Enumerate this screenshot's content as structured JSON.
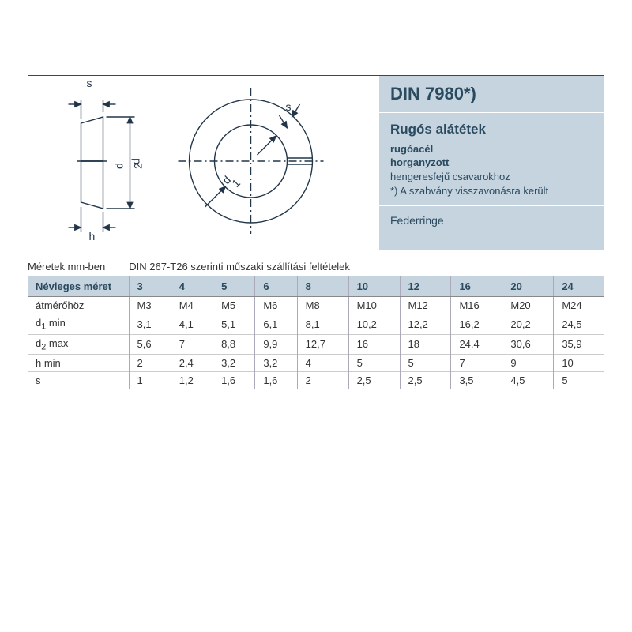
{
  "info": {
    "title": "DIN 7980*)",
    "subtitle": "Rugós alátétek",
    "material1": "rugóacél",
    "material2": "horganyzott",
    "note1": "hengeresfejű csavarokhoz",
    "note2": "*) A szabvány visszavonásra került",
    "alt_name": "Federringe"
  },
  "meta": {
    "units": "Méretek mm-ben",
    "spec_ref": "DIN 267-T26 szerinti műszaki szállítási feltételek"
  },
  "table": {
    "header_label": "Névleges méret",
    "rows": [
      {
        "label": "átmérőhöz"
      },
      {
        "label_html": "d<sub>1</sub> min"
      },
      {
        "label_html": "d<sub>2</sub> max"
      },
      {
        "label": "h min"
      },
      {
        "label": "s"
      }
    ],
    "columns": [
      "3",
      "4",
      "5",
      "6",
      "8",
      "10",
      "12",
      "16",
      "20",
      "24"
    ],
    "data": [
      [
        "M3",
        "M4",
        "M5",
        "M6",
        "M8",
        "M10",
        "M12",
        "M16",
        "M20",
        "M24"
      ],
      [
        "3,1",
        "4,1",
        "5,1",
        "6,1",
        "8,1",
        "10,2",
        "12,2",
        "16,2",
        "20,2",
        "24,5"
      ],
      [
        "5,6",
        "7",
        "8,8",
        "9,9",
        "12,7",
        "16",
        "18",
        "24,4",
        "30,6",
        "35,9"
      ],
      [
        "2",
        "2,4",
        "3,2",
        "3,2",
        "4",
        "5",
        "5",
        "7",
        "9",
        "10"
      ],
      [
        "1",
        "1,2",
        "1,6",
        "1,6",
        "2",
        "2,5",
        "2,5",
        "3,5",
        "4,5",
        "5"
      ]
    ]
  },
  "diagram": {
    "labels": {
      "s": "s",
      "h": "h",
      "d1": "d",
      "d1_sub": "1",
      "d2": "d",
      "d2_sub": "2"
    },
    "stroke": "#22364a",
    "stroke_width": 1.4
  },
  "colors": {
    "panel_bg": "#c5d4de",
    "panel_text": "#2a4a5f",
    "rule": "#888888"
  }
}
